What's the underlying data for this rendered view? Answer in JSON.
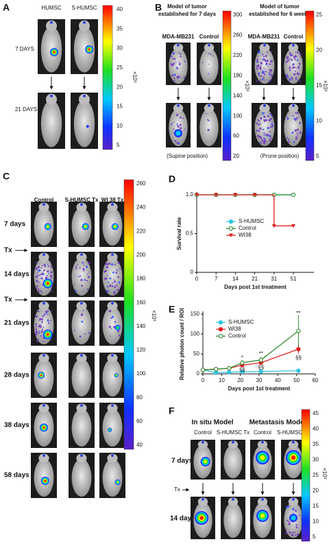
{
  "panels": {
    "A": {
      "letter": "A",
      "columns": [
        "HUMSC",
        "S-HUMSC"
      ],
      "rows": [
        "7 DAYS",
        "21 DAYS"
      ],
      "colorbar": {
        "ticks": [
          40,
          35,
          30,
          25,
          20,
          15,
          10,
          5
        ],
        "unit": "×10³"
      }
    },
    "B": {
      "letter": "B",
      "groups": [
        {
          "title": [
            "Model of tumor",
            "established for 7 days"
          ],
          "columns": [
            "MDA-MB231",
            "Control"
          ],
          "position": "(Supine position)",
          "colorbar": {
            "ticks": [
              300,
              260,
              220,
              180,
              140,
              100,
              60,
              20
            ],
            "unit": "×10³"
          }
        },
        {
          "title": [
            "Model of tumor",
            "established for 6 weeks"
          ],
          "columns": [
            "MDA-MB231",
            "Control"
          ],
          "position": "(Prone position)",
          "colorbar": {
            "ticks": [
              25,
              20,
              15,
              10,
              5
            ],
            "unit": "×10³"
          }
        }
      ]
    },
    "C": {
      "letter": "C",
      "columns": [
        "Control",
        "S-HUMSC Tx",
        "WI 38 Tx"
      ],
      "rows": [
        "7 days",
        "14 days",
        "21 days",
        "28 days",
        "38 days",
        "58 days"
      ],
      "treatment": "Tx",
      "colorbar": {
        "ticks": [
          260,
          240,
          220,
          200,
          180,
          160,
          140,
          120,
          100,
          80,
          60,
          40
        ],
        "unit": "×10³"
      }
    },
    "F": {
      "letter": "F",
      "models": [
        "In situ Model",
        "Metastasis Model"
      ],
      "columns": [
        "Control",
        "S-HUMSC Tx",
        "Control",
        "S-HUMSC Tx"
      ],
      "rows": [
        "7 days",
        "14 days"
      ],
      "treatment": "Tx",
      "colorbar": {
        "ticks": [
          45,
          40,
          35,
          30,
          25,
          20,
          15,
          10,
          5
        ],
        "unit": "×10³"
      }
    }
  },
  "chart_data": [
    {
      "type": "line",
      "label": "D",
      "step": true,
      "y_label": "Survival rate",
      "x_label": "Days post 1st treatment",
      "categories": [
        "0",
        "7",
        "14",
        "21",
        "31",
        "51"
      ],
      "ylim": [
        0,
        1
      ],
      "yticks": [
        0,
        0.5,
        {
          "value": 1,
          "label": "1.0"
        }
      ],
      "series": [
        {
          "name": "S-HUMSC",
          "color": "#33c3e0",
          "marker": "circle",
          "values": [
            1,
            1,
            1,
            1,
            1,
            1
          ]
        },
        {
          "name": "Control",
          "color": "#2e8b2e",
          "marker": "open-circle",
          "values": [
            1,
            1,
            1,
            1,
            1,
            1
          ]
        },
        {
          "name": "WI38",
          "color": "#e02020",
          "marker": "triangle",
          "values": [
            1,
            1,
            1,
            1,
            0.6,
            0.6
          ]
        }
      ]
    },
    {
      "type": "errorline",
      "label": "E",
      "y_label": "Relative photon count / ROI",
      "x_label": "Days post 1st treatment",
      "x": [
        0,
        7,
        14,
        21,
        31,
        51
      ],
      "xlim": [
        0,
        60
      ],
      "xticks": [
        0,
        10,
        20,
        30,
        40,
        50,
        60
      ],
      "ylim": [
        0,
        150
      ],
      "yticks": [
        0,
        50,
        100,
        150
      ],
      "series": [
        {
          "name": "S-HUMSC",
          "color": "#33c3e0",
          "marker": "circle",
          "values": [
            10,
            3,
            4,
            5,
            6,
            8
          ],
          "errors": [
            0,
            0,
            0,
            1,
            1,
            2
          ]
        },
        {
          "name": "WI38",
          "color": "#e02020",
          "marker": "circle",
          "values": [
            10,
            12,
            14,
            22,
            28,
            62
          ],
          "errors": [
            0,
            2,
            2,
            5,
            6,
            12
          ]
        },
        {
          "name": "Control",
          "color": "#2e8b2e",
          "marker": "open-circle",
          "values": [
            10,
            12,
            14,
            28,
            35,
            108
          ],
          "errors": [
            0,
            2,
            2,
            6,
            8,
            40
          ]
        }
      ],
      "annotations": [
        {
          "text": "*",
          "x": 21,
          "y": 40,
          "color": "#2e8b2e"
        },
        {
          "text": "**",
          "x": 31,
          "y": 50,
          "color": "#2e8b2e"
        },
        {
          "text": "**",
          "x": 51,
          "y": 152,
          "color": "#2e8b2e"
        },
        {
          "text": "§§",
          "x": 21,
          "y": 10,
          "color": "#e02020"
        },
        {
          "text": "§§",
          "x": 31,
          "y": 16,
          "color": "#e02020"
        },
        {
          "text": "§§",
          "x": 51,
          "y": 40,
          "color": "#e02020"
        }
      ]
    }
  ]
}
